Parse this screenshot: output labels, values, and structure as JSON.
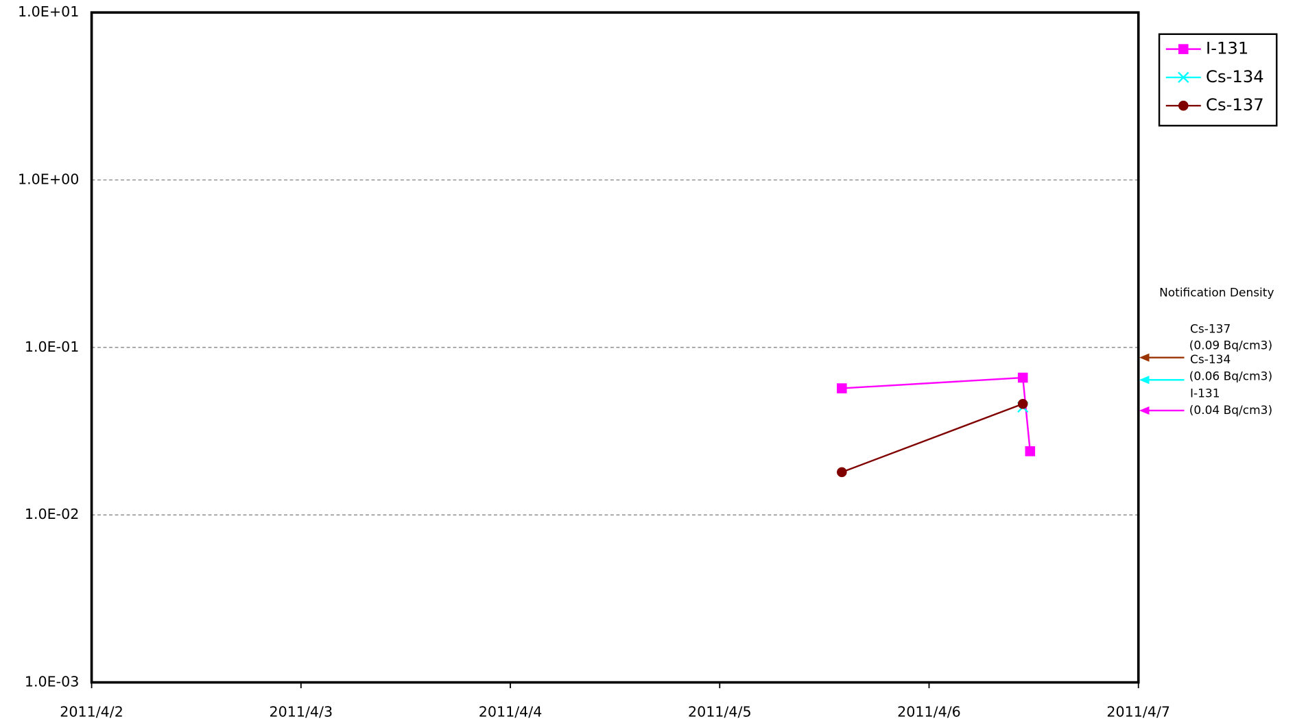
{
  "chart_data": {
    "type": "line",
    "log_y": true,
    "grid": true,
    "legend": "upper right",
    "xlim": [
      "2011/4/2",
      "2011/4/7"
    ],
    "xticks": [
      "2011/4/2",
      "2011/4/3",
      "2011/4/4",
      "2011/4/5",
      "2011/4/6",
      "2011/4/7"
    ],
    "ylim": [
      0.001,
      10
    ],
    "yticks": [
      {
        "value": 0.001,
        "label": "1.0E-03"
      },
      {
        "value": 0.01,
        "label": "1.0E-02"
      },
      {
        "value": 0.1,
        "label": "1.0E-01"
      },
      {
        "value": 1,
        "label": "1.0E+00"
      },
      {
        "value": 10,
        "label": "1.0E+01"
      }
    ],
    "series": [
      {
        "name": "I-131",
        "color": "#ff00ff",
        "marker": "square",
        "x": [
          "2011/4/5 14:00",
          "2011/4/6 10:45",
          "2011/4/6 11:35"
        ],
        "values": [
          0.057,
          0.066,
          0.024
        ]
      },
      {
        "name": "Cs-134",
        "color": "#00ffff",
        "marker": "x",
        "x": [
          "2011/4/6 10:45"
        ],
        "values": [
          0.044
        ]
      },
      {
        "name": "Cs-137",
        "color": "#800000",
        "marker": "circle",
        "x": [
          "2011/4/5 14:00",
          "2011/4/6 10:45"
        ],
        "values": [
          0.018,
          0.046
        ]
      }
    ],
    "notification_title": "Notification Density",
    "notification_levels": [
      {
        "name": "Cs-137",
        "label": "(0.09  Bq/cm3)",
        "value": 0.087,
        "color": "#993300"
      },
      {
        "name": "Cs-134",
        "label": "(0.06  Bq/cm3)",
        "value": 0.064,
        "color": "#00ffff"
      },
      {
        "name": "I-131",
        "label": "(0.04  Bq/cm3)",
        "value": 0.042,
        "color": "#ff00ff"
      }
    ]
  }
}
